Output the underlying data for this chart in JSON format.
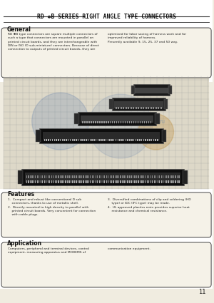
{
  "title": "RD ✱B SERIES RIGHT ANGLE TYPE CONNECTORS",
  "background_color": "#f0ece0",
  "page_number": "11",
  "general_title": "General",
  "general_text_left": "RD ✱B type connectors are square multiple connectors of\nsuch a type that connectors are mounted in parallel on\nprinted circuit boards, and they are interchangeable with\nDIN or ISO (D sub-miniature) connectors. Because of direct\nconnection to outputs of printed circuit boards, they are",
  "general_text_right": "optimized for labor saving of harness work and for\nimproved reliability of harness.\nPresently available 9, 15, 25, 37 and 50 way.",
  "features_title": "Features",
  "features_text_left": "1.  Compact and robust like conventional D sub\n    connectors, thanks to use of metallic shell.\n2.  Directly mounted to high density to parallel with\n    printed circuit boards. Very convenient for connection\n    with cable plugs.",
  "features_text_right": "3.  Diversified combinations of clip and soldering (HD\n    type) or IDC (IFC type) may be made.\n4.  UL approved plastics resin provides superior heat\n    resistance and chemical resistance.",
  "application_title": "Application",
  "application_text": "Computers, peripheral and terminal devices, control\nequipment, measuring apparatus and MODEMS of",
  "application_text_right": "communication equipment.",
  "title_color": "#111111",
  "text_color": "#222222",
  "grid_color": "#999999",
  "box_bg": "#f5f2e8",
  "box_edge": "#444444"
}
